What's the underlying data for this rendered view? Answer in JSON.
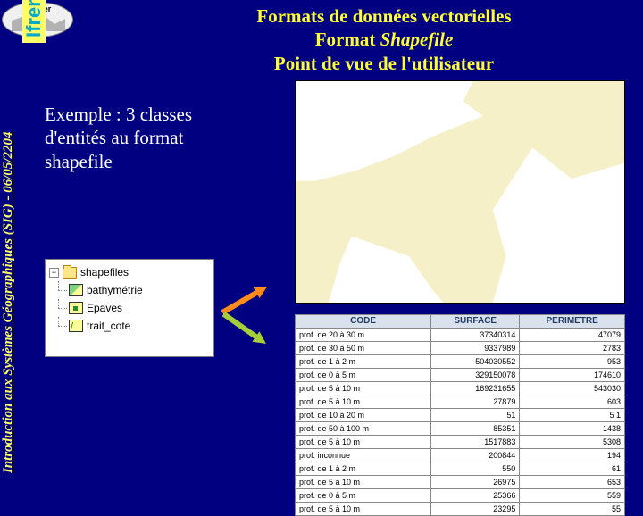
{
  "logo_text": "Ifremer",
  "ifremer_label": "Ifremer",
  "sidebar": "Introduction aux Systèmes Géographiques (SIG) - 06/05/2204",
  "heading": {
    "line1": "Formats de données vectorielles",
    "line2a": "Format ",
    "line2b": "Shapefile",
    "line3": "Point de vue de l'utilisateur"
  },
  "example": "Exemple : 3 classes d'entités au format shapefile",
  "tree": {
    "root": "shapefiles",
    "items": [
      "bathymétrie",
      "Epaves",
      "trait_cote"
    ]
  },
  "table": {
    "headers": [
      "CODE",
      "SURFACE",
      "PERIMETRE"
    ],
    "rows": [
      [
        "prof. de 20 à 30 m",
        "37340314",
        "47079"
      ],
      [
        "prof. de 30 à 50 m",
        "9337989",
        "2783"
      ],
      [
        "prof. de 1 à 2 m",
        "504030552",
        "953"
      ],
      [
        "prof. de 0 à 5 m",
        "329150078",
        "174610"
      ],
      [
        "prof. de 5 à 10 m",
        "169231655",
        "543030"
      ],
      [
        "prof. de 5 à 10 m",
        "27879",
        "603"
      ],
      [
        "prof. de 10 à 20 m",
        "51",
        "5 1"
      ],
      [
        "prof. de 50 à 100 m",
        "85351",
        "1438"
      ],
      [
        "prof. de 5 à 10 m",
        "1517883",
        "5308"
      ],
      [
        "prof. inconnue",
        "200844",
        "194"
      ],
      [
        "prof. de 1 à 2 m",
        "550",
        "61"
      ],
      [
        "prof. de 5 à 10 m",
        "26975",
        "653"
      ],
      [
        "prof. de 0 à 5 m",
        "25366",
        "559"
      ],
      [
        "prof. de 5 à 10 m",
        "23295",
        "55"
      ]
    ]
  }
}
